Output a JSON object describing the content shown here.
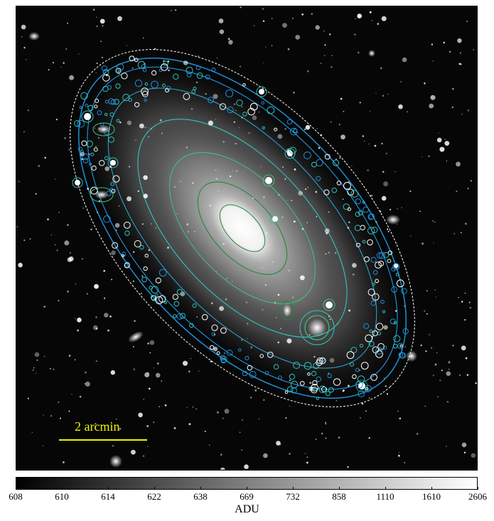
{
  "scale_bar": {
    "label": "2 arcmin",
    "color": "#f2f20a"
  },
  "colorbar": {
    "label": "ADU",
    "ticks": [
      "608",
      "610",
      "614",
      "622",
      "638",
      "669",
      "732",
      "858",
      "1110",
      "1610",
      "2606"
    ]
  },
  "contour_colors": [
    "#ffffff",
    "#1e90d6",
    "#2ec4c0",
    "#3fbf7f",
    "#1f8a3a"
  ]
}
